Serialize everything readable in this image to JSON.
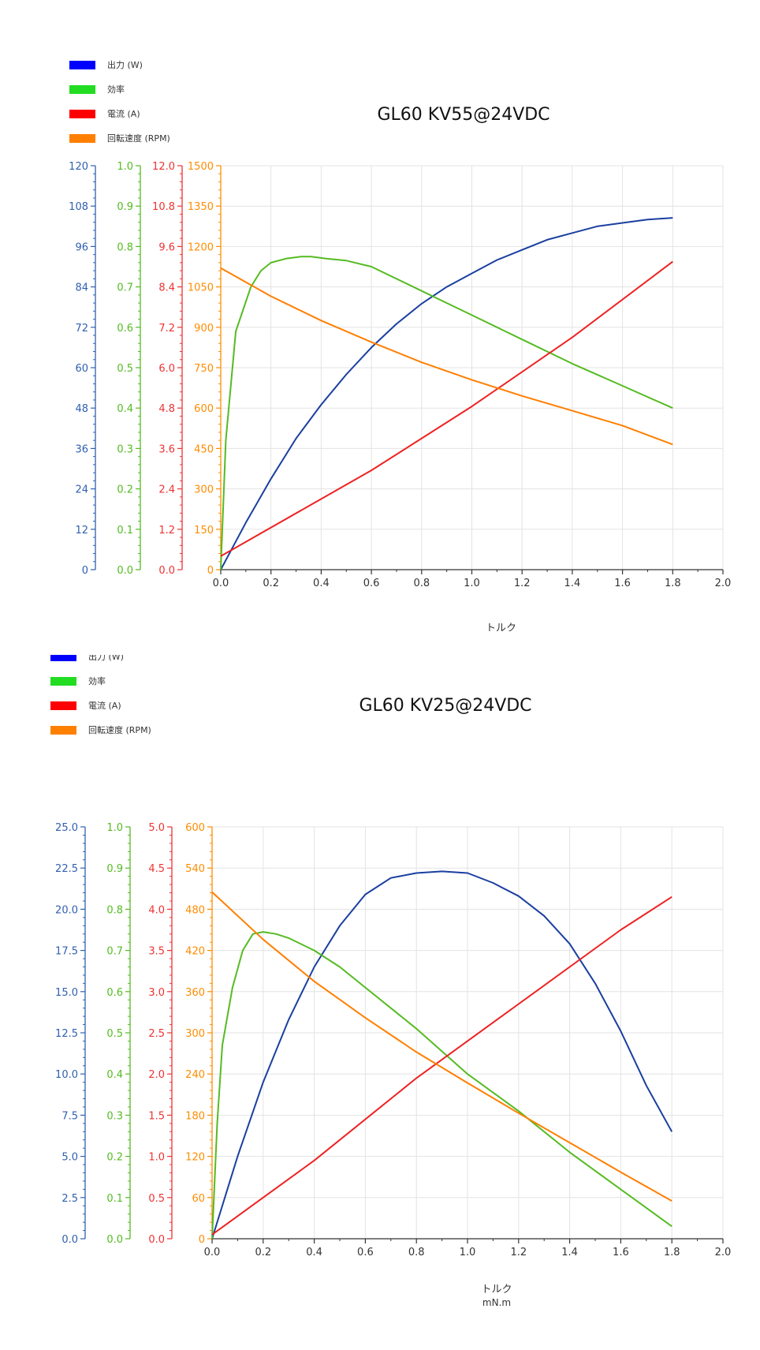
{
  "chart_data": [
    {
      "type": "line",
      "title": "GL60 KV55@24VDC",
      "xlabel": "トルク",
      "xlabel2": "",
      "xlim": [
        0,
        2.0
      ],
      "xticks": [
        "0.0",
        "0.2",
        "0.4",
        "0.6",
        "0.8",
        "1.0",
        "1.2",
        "1.4",
        "1.6",
        "1.8",
        "2.0"
      ],
      "legend": [
        {
          "label": "出力 (W)",
          "color": "#0000ff"
        },
        {
          "label": "効率",
          "color": "#22dd22"
        },
        {
          "label": "電流 (A)",
          "color": "#ff0000"
        },
        {
          "label": "回転速度 (RPM)",
          "color": "#ff7f00"
        }
      ],
      "axes": [
        {
          "id": "power",
          "color": "#3060b0",
          "range": [
            0,
            120
          ],
          "ticks": [
            "0",
            "12",
            "24",
            "36",
            "48",
            "60",
            "72",
            "84",
            "96",
            "108",
            "120"
          ]
        },
        {
          "id": "efficiency",
          "color": "#55bb22",
          "range": [
            0,
            1.0
          ],
          "ticks": [
            "0.0",
            "0.1",
            "0.2",
            "0.3",
            "0.4",
            "0.5",
            "0.6",
            "0.7",
            "0.8",
            "0.9",
            "1.0"
          ]
        },
        {
          "id": "current",
          "color": "#ee3333",
          "range": [
            0,
            12.0
          ],
          "ticks": [
            "0.0",
            "1.2",
            "2.4",
            "3.6",
            "4.8",
            "6.0",
            "7.2",
            "8.4",
            "9.6",
            "10.8",
            "12.0"
          ]
        },
        {
          "id": "rpm",
          "color": "#ff8c00",
          "range": [
            0,
            1500
          ],
          "ticks": [
            "0",
            "150",
            "300",
            "450",
            "600",
            "750",
            "900",
            "1050",
            "1200",
            "1350",
            "1500"
          ]
        }
      ],
      "series": [
        {
          "name": "出力 (W)",
          "axis": "power",
          "color": "#1a3fa0",
          "x": [
            0,
            0.1,
            0.2,
            0.3,
            0.4,
            0.5,
            0.6,
            0.7,
            0.8,
            0.9,
            1.0,
            1.1,
            1.2,
            1.3,
            1.4,
            1.5,
            1.6,
            1.7,
            1.8
          ],
          "y": [
            0,
            14,
            27,
            39,
            49,
            58,
            66,
            73,
            79,
            84,
            88,
            92,
            95,
            98,
            100,
            102,
            103,
            104,
            104.5
          ]
        },
        {
          "name": "効率",
          "axis": "efficiency",
          "color": "#55bb22",
          "x": [
            0,
            0.02,
            0.06,
            0.12,
            0.16,
            0.2,
            0.26,
            0.32,
            0.36,
            0.42,
            0.5,
            0.6,
            0.8,
            1.0,
            1.2,
            1.4,
            1.6,
            1.8
          ],
          "y": [
            0,
            0.32,
            0.59,
            0.7,
            0.74,
            0.76,
            0.77,
            0.775,
            0.775,
            0.77,
            0.765,
            0.75,
            0.69,
            0.63,
            0.57,
            0.51,
            0.455,
            0.4
          ]
        },
        {
          "name": "電流 (A)",
          "axis": "current",
          "color": "#ee2222",
          "x": [
            0,
            0.6,
            1.0,
            1.4,
            1.8
          ],
          "y": [
            0.4,
            2.95,
            4.85,
            6.9,
            9.15
          ]
        },
        {
          "name": "回転速度 (RPM)",
          "axis": "rpm",
          "color": "#ff7f00",
          "x": [
            0,
            0.2,
            0.4,
            0.6,
            0.8,
            1.0,
            1.2,
            1.4,
            1.6,
            1.8
          ],
          "y": [
            1120,
            1015,
            925,
            845,
            770,
            705,
            645,
            590,
            535,
            465
          ]
        }
      ]
    },
    {
      "type": "line",
      "title": "GL60 KV25@24VDC",
      "xlabel": "トルク",
      "xlabel2": "mN.m",
      "xlim": [
        0,
        2.0
      ],
      "xticks": [
        "0.0",
        "0.2",
        "0.4",
        "0.6",
        "0.8",
        "1.0",
        "1.2",
        "1.4",
        "1.6",
        "1.8",
        "2.0"
      ],
      "legend": [
        {
          "label": "出力 (W)",
          "color": "#0000ff"
        },
        {
          "label": "効率",
          "color": "#22dd22"
        },
        {
          "label": "電流 (A)",
          "color": "#ff0000"
        },
        {
          "label": "回転速度 (RPM)",
          "color": "#ff7f00"
        }
      ],
      "axes": [
        {
          "id": "power",
          "color": "#3060b0",
          "range": [
            0,
            25.0
          ],
          "ticks": [
            "0.0",
            "2.5",
            "5.0",
            "7.5",
            "10.0",
            "12.5",
            "15.0",
            "17.5",
            "20.0",
            "22.5",
            "25.0"
          ]
        },
        {
          "id": "efficiency",
          "color": "#55bb22",
          "range": [
            0,
            1.0
          ],
          "ticks": [
            "0.0",
            "0.1",
            "0.2",
            "0.3",
            "0.4",
            "0.5",
            "0.6",
            "0.7",
            "0.8",
            "0.9",
            "1.0"
          ]
        },
        {
          "id": "current",
          "color": "#ee3333",
          "range": [
            0,
            5.0
          ],
          "ticks": [
            "0.0",
            "0.5",
            "1.0",
            "1.5",
            "2.0",
            "2.5",
            "3.0",
            "3.5",
            "4.0",
            "4.5",
            "5.0"
          ]
        },
        {
          "id": "rpm",
          "color": "#ff8c00",
          "range": [
            0,
            600
          ],
          "ticks": [
            "0",
            "60",
            "120",
            "180",
            "240",
            "300",
            "360",
            "420",
            "480",
            "540",
            "600"
          ]
        }
      ],
      "series": [
        {
          "name": "出力 (W)",
          "axis": "power",
          "color": "#1a3fa0",
          "x": [
            0,
            0.1,
            0.2,
            0.3,
            0.4,
            0.5,
            0.6,
            0.7,
            0.8,
            0.9,
            1.0,
            1.1,
            1.2,
            1.3,
            1.4,
            1.5,
            1.6,
            1.7,
            1.8
          ],
          "y": [
            0,
            5.0,
            9.5,
            13.3,
            16.5,
            19.0,
            20.9,
            21.9,
            22.2,
            22.3,
            22.2,
            21.6,
            20.8,
            19.6,
            17.9,
            15.5,
            12.6,
            9.3,
            6.5
          ]
        },
        {
          "name": "効率",
          "axis": "efficiency",
          "color": "#55bb22",
          "x": [
            0,
            0.02,
            0.04,
            0.08,
            0.12,
            0.16,
            0.2,
            0.25,
            0.3,
            0.4,
            0.5,
            0.6,
            0.7,
            0.8,
            1.0,
            1.2,
            1.4,
            1.6,
            1.8
          ],
          "y": [
            0,
            0.28,
            0.47,
            0.61,
            0.7,
            0.74,
            0.745,
            0.74,
            0.73,
            0.7,
            0.66,
            0.61,
            0.56,
            0.51,
            0.4,
            0.31,
            0.21,
            0.12,
            0.03
          ]
        },
        {
          "name": "電流 (A)",
          "axis": "current",
          "color": "#ee2222",
          "x": [
            0,
            0.4,
            0.8,
            1.2,
            1.6,
            1.8
          ],
          "y": [
            0.05,
            0.95,
            1.95,
            2.85,
            3.75,
            4.15
          ]
        },
        {
          "name": "回転速度 (RPM)",
          "axis": "rpm",
          "color": "#ff7f00",
          "x": [
            0,
            0.2,
            0.4,
            0.6,
            0.8,
            1.0,
            1.2,
            1.4,
            1.6,
            1.8
          ],
          "y": [
            505,
            436,
            375,
            322,
            272,
            227,
            183,
            140,
            97,
            55
          ]
        }
      ]
    }
  ]
}
